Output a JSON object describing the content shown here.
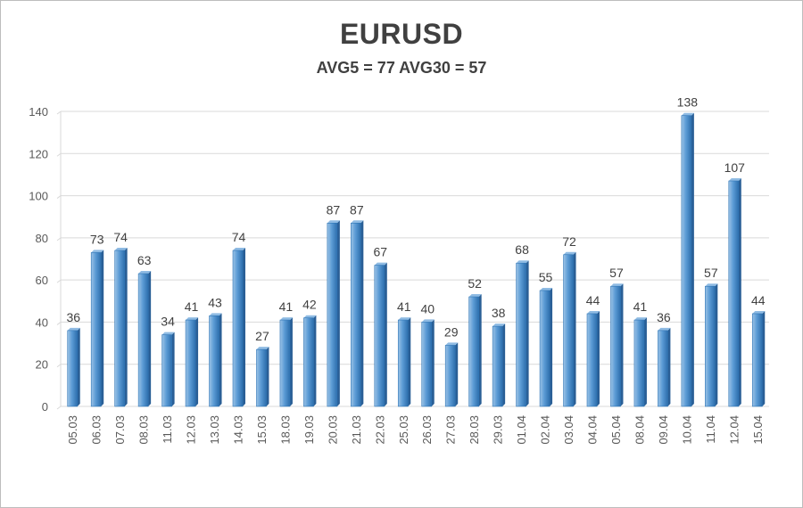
{
  "chart_data": {
    "type": "bar",
    "title": "EURUSD",
    "subtitle": "AVG5 = 77 AVG30 = 57",
    "xlabel": "",
    "ylabel": "",
    "ylim": [
      0,
      140
    ],
    "yticks": [
      0,
      20,
      40,
      60,
      80,
      100,
      120,
      140
    ],
    "grid": true,
    "legend": "none",
    "bar_color": "#5b9bd5",
    "bar_edge_color": "#2e75b6",
    "categories": [
      "05.03",
      "06.03",
      "07.03",
      "08.03",
      "11.03",
      "12.03",
      "13.03",
      "14.03",
      "15.03",
      "18.03",
      "19.03",
      "20.03",
      "21.03",
      "22.03",
      "25.03",
      "26.03",
      "27.03",
      "28.03",
      "29.03",
      "01.04",
      "02.04",
      "03.04",
      "04.04",
      "05.04",
      "08.04",
      "09.04",
      "10.04",
      "11.04",
      "12.04",
      "15.04"
    ],
    "values": [
      36,
      73,
      74,
      63,
      34,
      41,
      43,
      74,
      27,
      41,
      42,
      87,
      87,
      67,
      41,
      40,
      29,
      52,
      38,
      68,
      55,
      72,
      44,
      57,
      41,
      36,
      138,
      57,
      107,
      44
    ]
  }
}
